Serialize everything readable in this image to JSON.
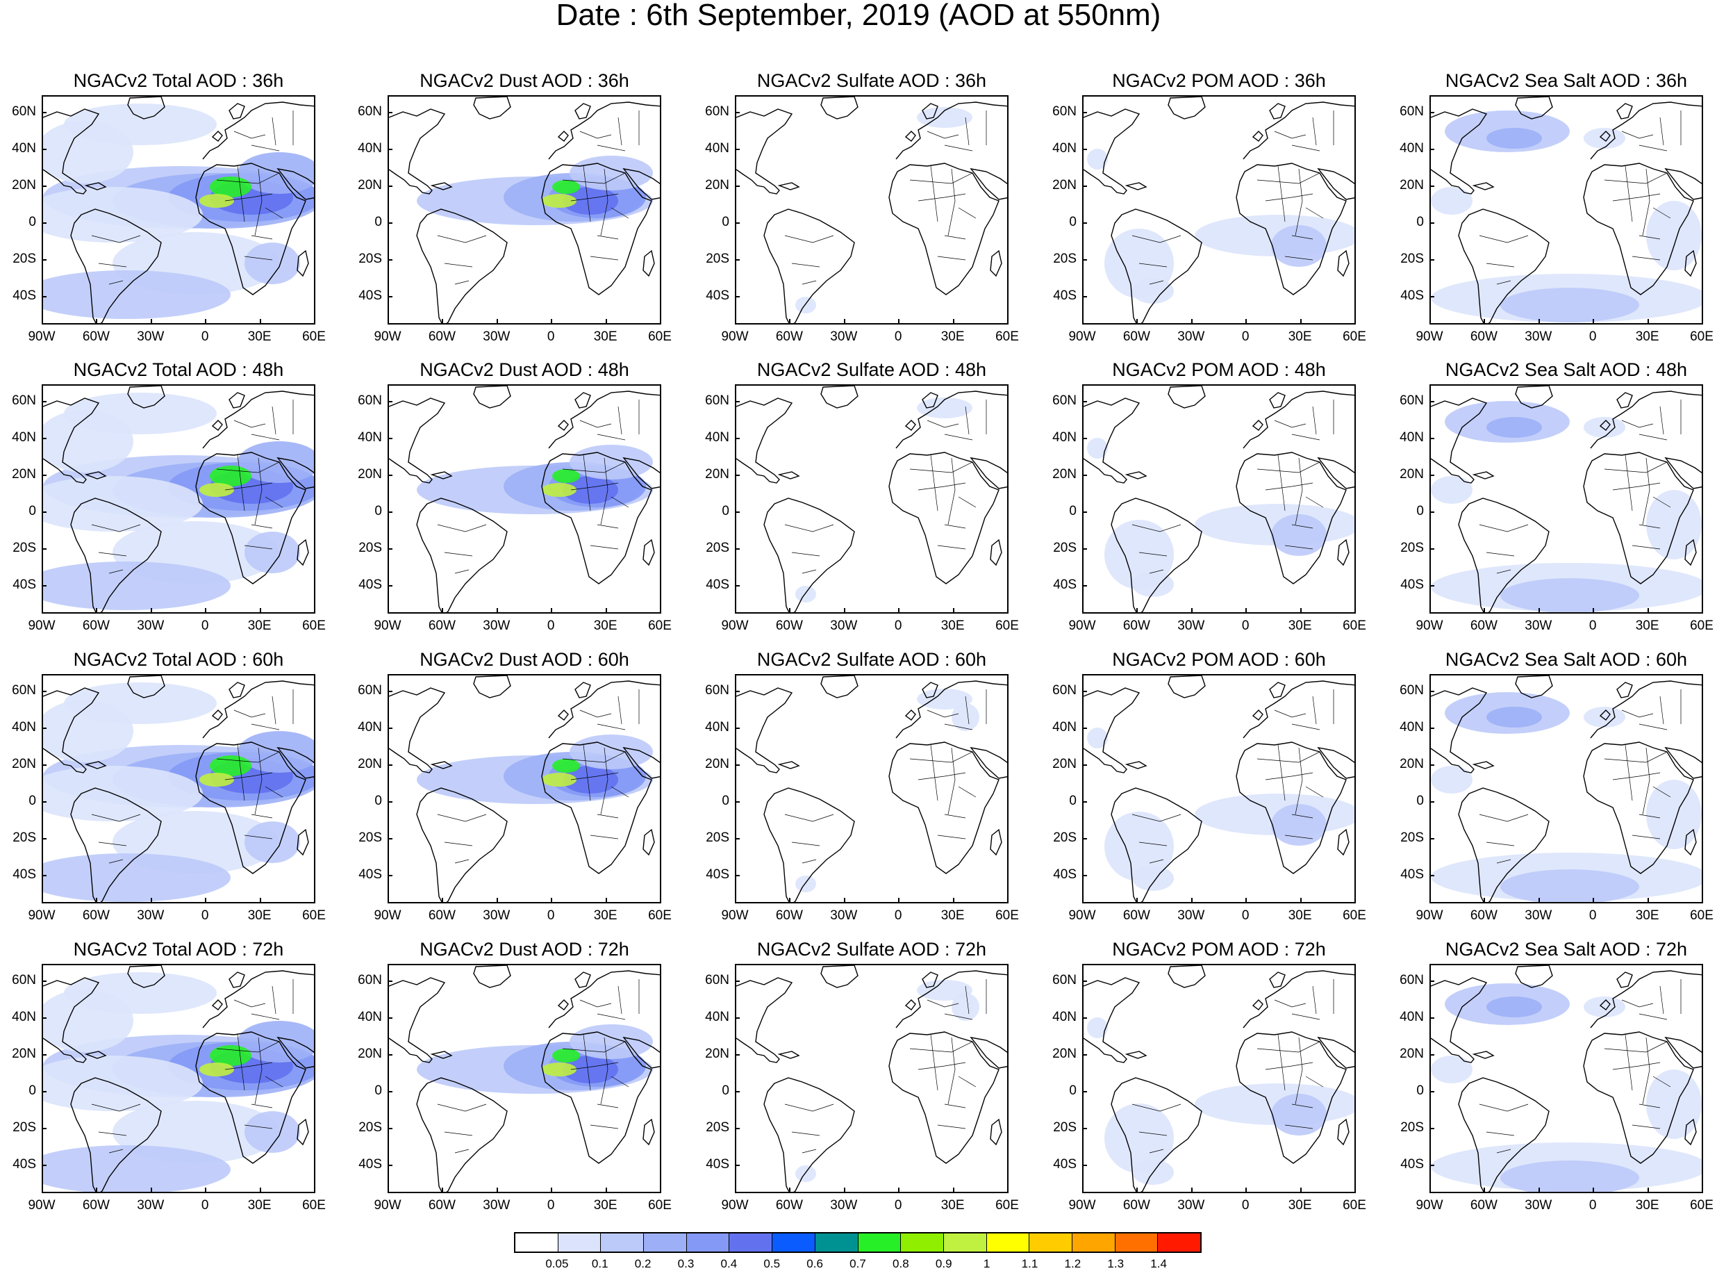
{
  "title": "Date : 6th September, 2019 (AOD at 550nm)",
  "lat_ticks": [
    "60N",
    "40N",
    "20N",
    "0",
    "20S",
    "40S"
  ],
  "lon_ticks": [
    "90W",
    "60W",
    "30W",
    "0",
    "30E",
    "60E"
  ],
  "panels": [
    {
      "title": "NGACv2 Total AOD : 36h",
      "species": "total",
      "lead_hours": 36
    },
    {
      "title": "NGACv2 Dust AOD : 36h",
      "species": "dust",
      "lead_hours": 36
    },
    {
      "title": "NGACv2 Sulfate AOD : 36h",
      "species": "sulfate",
      "lead_hours": 36
    },
    {
      "title": "NGACv2 POM AOD : 36h",
      "species": "pom",
      "lead_hours": 36
    },
    {
      "title": "NGACv2 Sea Salt AOD : 36h",
      "species": "seasalt",
      "lead_hours": 36
    },
    {
      "title": "NGACv2 Total AOD : 48h",
      "species": "total",
      "lead_hours": 48
    },
    {
      "title": "NGACv2 Dust AOD : 48h",
      "species": "dust",
      "lead_hours": 48
    },
    {
      "title": "NGACv2 Sulfate AOD : 48h",
      "species": "sulfate",
      "lead_hours": 48
    },
    {
      "title": "NGACv2 POM AOD : 48h",
      "species": "pom",
      "lead_hours": 48
    },
    {
      "title": "NGACv2 Sea Salt AOD : 48h",
      "species": "seasalt",
      "lead_hours": 48
    },
    {
      "title": "NGACv2 Total AOD : 60h",
      "species": "total",
      "lead_hours": 60
    },
    {
      "title": "NGACv2 Dust AOD : 60h",
      "species": "dust",
      "lead_hours": 60
    },
    {
      "title": "NGACv2 Sulfate AOD : 60h",
      "species": "sulfate",
      "lead_hours": 60
    },
    {
      "title": "NGACv2 POM AOD : 60h",
      "species": "pom",
      "lead_hours": 60
    },
    {
      "title": "NGACv2 Sea Salt AOD : 60h",
      "species": "seasalt",
      "lead_hours": 60
    },
    {
      "title": "NGACv2 Total AOD : 72h",
      "species": "total",
      "lead_hours": 72
    },
    {
      "title": "NGACv2 Dust AOD : 72h",
      "species": "dust",
      "lead_hours": 72
    },
    {
      "title": "NGACv2 Sulfate AOD : 72h",
      "species": "sulfate",
      "lead_hours": 72
    },
    {
      "title": "NGACv2 POM AOD : 72h",
      "species": "pom",
      "lead_hours": 72
    },
    {
      "title": "NGACv2 Sea Salt  AOD : 72h",
      "species": "seasalt",
      "lead_hours": 72
    }
  ],
  "colorbar": {
    "labels": [
      "0.05",
      "0.1",
      "0.2",
      "0.3",
      "0.4",
      "0.5",
      "0.6",
      "0.7",
      "0.8",
      "0.9",
      "1",
      "1.1",
      "1.2",
      "1.3",
      "1.4"
    ],
    "colors": [
      "#ffffff",
      "#dbe4fc",
      "#bccafa",
      "#9db0f7",
      "#8499f5",
      "#6272ef",
      "#0a5cff",
      "#009292",
      "#27ef27",
      "#90ee00",
      "#c0f040",
      "#ffff00",
      "#ffcc00",
      "#ffa500",
      "#ff7000",
      "#ff1a00"
    ]
  }
}
